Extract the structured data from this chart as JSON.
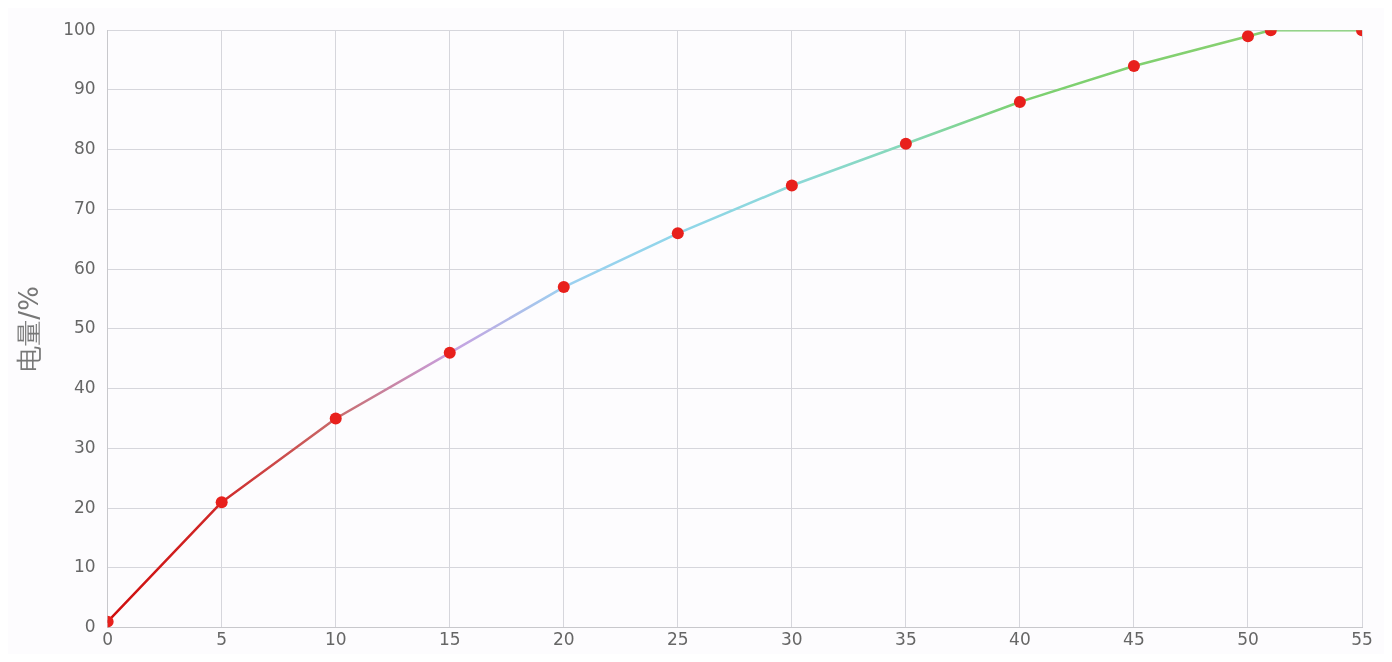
{
  "chart_data": {
    "type": "line",
    "ylabel": "电量/%",
    "x": [
      0,
      5,
      10,
      15,
      20,
      25,
      30,
      35,
      40,
      45,
      50,
      51,
      55
    ],
    "series": [
      {
        "color": "#e8201c",
        "colors": [
          "#d00c0c",
          "#d02a2a",
          "#c86a6a",
          "#c8a0e0",
          "#9cd0f0",
          "#90d6ea",
          "#8cd8d8",
          "#86d8b8",
          "#7cd070",
          "#80d070",
          "#88d070",
          "#80d070",
          "#80d070"
        ],
        "values": [
          1,
          21,
          35,
          46,
          57,
          66,
          74,
          81,
          88,
          94,
          99,
          100,
          100
        ]
      }
    ],
    "xlim": [
      0,
      55
    ],
    "xticks": [
      0,
      5,
      10,
      15,
      20,
      25,
      30,
      35,
      40,
      45,
      50,
      55
    ],
    "ylim": [
      0,
      100
    ],
    "yticks": [
      0,
      10,
      20,
      30,
      40,
      50,
      60,
      70,
      80,
      90,
      100
    ],
    "grid": true,
    "legend": false,
    "marker": "circle",
    "line_style": "solid"
  }
}
